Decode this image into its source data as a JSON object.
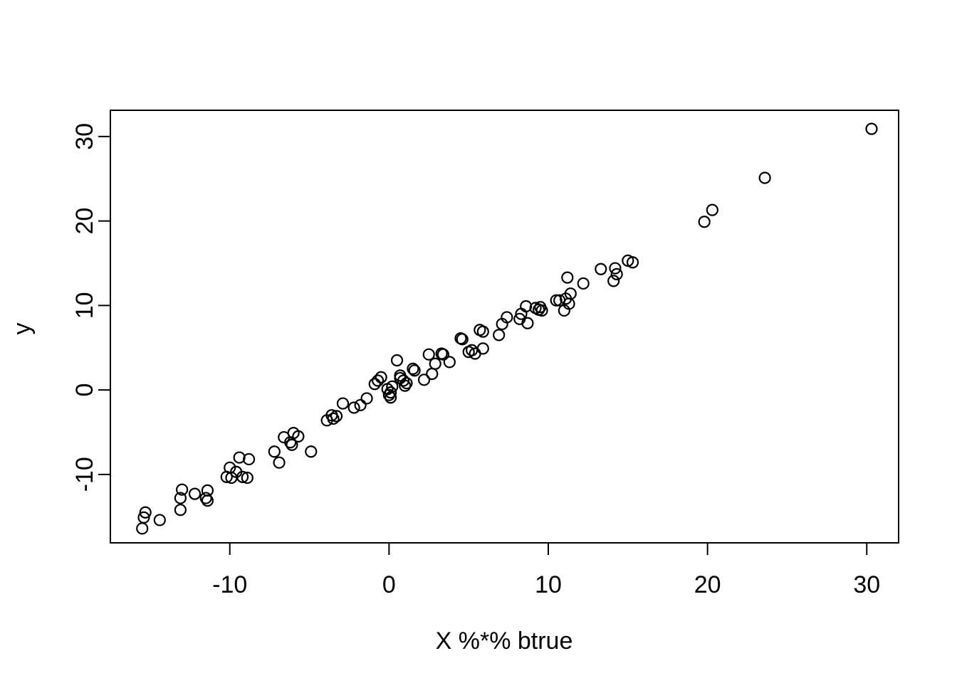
{
  "chart_data": {
    "type": "scatter",
    "title": "",
    "xlabel": "X %*% btrue",
    "ylabel": "y",
    "xlim": [
      -17.5,
      32.0
    ],
    "ylim": [
      -18.1,
      33.1
    ],
    "x_ticks": [
      "-10",
      "0",
      "10",
      "20",
      "30"
    ],
    "x_tick_values": [
      -10,
      0,
      10,
      20,
      30
    ],
    "y_ticks": [
      "-10",
      "0",
      "10",
      "20",
      "30"
    ],
    "y_tick_values": [
      -10,
      0,
      10,
      20,
      30
    ],
    "grid": false,
    "legend_position": "none",
    "marker": "open-circle",
    "marker_radius": 7.5,
    "stroke_color": "#000000",
    "background_color": "#ffffff",
    "points": [
      [
        -15.4,
        -15.1
      ],
      [
        -15.3,
        -14.5
      ],
      [
        -15.5,
        -16.4
      ],
      [
        -14.4,
        -15.4
      ],
      [
        -13.0,
        -11.8
      ],
      [
        -13.1,
        -12.8
      ],
      [
        -13.1,
        -14.2
      ],
      [
        -12.2,
        -12.3
      ],
      [
        -11.4,
        -11.9
      ],
      [
        -11.5,
        -12.8
      ],
      [
        -11.4,
        -13.1
      ],
      [
        -9.4,
        -8.0
      ],
      [
        -8.8,
        -8.2
      ],
      [
        -10.0,
        -9.2
      ],
      [
        -9.6,
        -9.7
      ],
      [
        -10.2,
        -10.3
      ],
      [
        -9.9,
        -10.4
      ],
      [
        -9.2,
        -10.3
      ],
      [
        -8.9,
        -10.4
      ],
      [
        -7.2,
        -7.3
      ],
      [
        -6.9,
        -8.6
      ],
      [
        -6.6,
        -5.6
      ],
      [
        -6.0,
        -5.1
      ],
      [
        -5.7,
        -5.5
      ],
      [
        -6.2,
        -6.2
      ],
      [
        -6.1,
        -6.5
      ],
      [
        -4.9,
        -7.3
      ],
      [
        -3.9,
        -3.6
      ],
      [
        -3.6,
        -3.0
      ],
      [
        -3.3,
        -3.1
      ],
      [
        -3.5,
        -3.4
      ],
      [
        -2.9,
        -1.6
      ],
      [
        -2.2,
        -2.1
      ],
      [
        -1.8,
        -1.8
      ],
      [
        -1.4,
        -1.0
      ],
      [
        -0.9,
        0.7
      ],
      [
        -0.7,
        1.1
      ],
      [
        -0.5,
        1.5
      ],
      [
        -0.1,
        0.1
      ],
      [
        0.1,
        -0.3
      ],
      [
        0.2,
        0.4
      ],
      [
        0.0,
        -0.6
      ],
      [
        0.1,
        -0.9
      ],
      [
        0.5,
        3.5
      ],
      [
        0.7,
        1.7
      ],
      [
        0.7,
        1.4
      ],
      [
        0.9,
        1.1
      ],
      [
        1.0,
        0.5
      ],
      [
        1.1,
        0.8
      ],
      [
        1.5,
        2.5
      ],
      [
        1.6,
        2.3
      ],
      [
        2.2,
        1.2
      ],
      [
        2.5,
        4.2
      ],
      [
        2.9,
        3.1
      ],
      [
        2.7,
        1.9
      ],
      [
        3.3,
        4.3
      ],
      [
        3.4,
        4.2
      ],
      [
        3.8,
        3.3
      ],
      [
        4.5,
        6.1
      ],
      [
        4.6,
        6.0
      ],
      [
        5.0,
        4.5
      ],
      [
        5.2,
        4.7
      ],
      [
        5.4,
        4.3
      ],
      [
        5.9,
        4.9
      ],
      [
        5.7,
        7.1
      ],
      [
        5.9,
        6.9
      ],
      [
        6.9,
        6.5
      ],
      [
        7.1,
        7.8
      ],
      [
        7.4,
        8.6
      ],
      [
        8.2,
        8.4
      ],
      [
        8.3,
        9.0
      ],
      [
        8.6,
        9.9
      ],
      [
        8.7,
        7.9
      ],
      [
        9.2,
        9.7
      ],
      [
        9.4,
        9.5
      ],
      [
        9.5,
        9.8
      ],
      [
        9.6,
        9.4
      ],
      [
        10.5,
        10.6
      ],
      [
        10.7,
        10.6
      ],
      [
        11.1,
        10.8
      ],
      [
        11.4,
        11.4
      ],
      [
        11.3,
        10.2
      ],
      [
        11.0,
        9.4
      ],
      [
        11.2,
        13.3
      ],
      [
        12.2,
        12.6
      ],
      [
        13.3,
        14.3
      ],
      [
        14.1,
        12.9
      ],
      [
        14.2,
        14.4
      ],
      [
        14.3,
        13.7
      ],
      [
        15.0,
        15.3
      ],
      [
        15.3,
        15.1
      ],
      [
        19.8,
        19.9
      ],
      [
        20.3,
        21.3
      ],
      [
        23.6,
        25.1
      ],
      [
        30.3,
        30.9
      ]
    ]
  }
}
